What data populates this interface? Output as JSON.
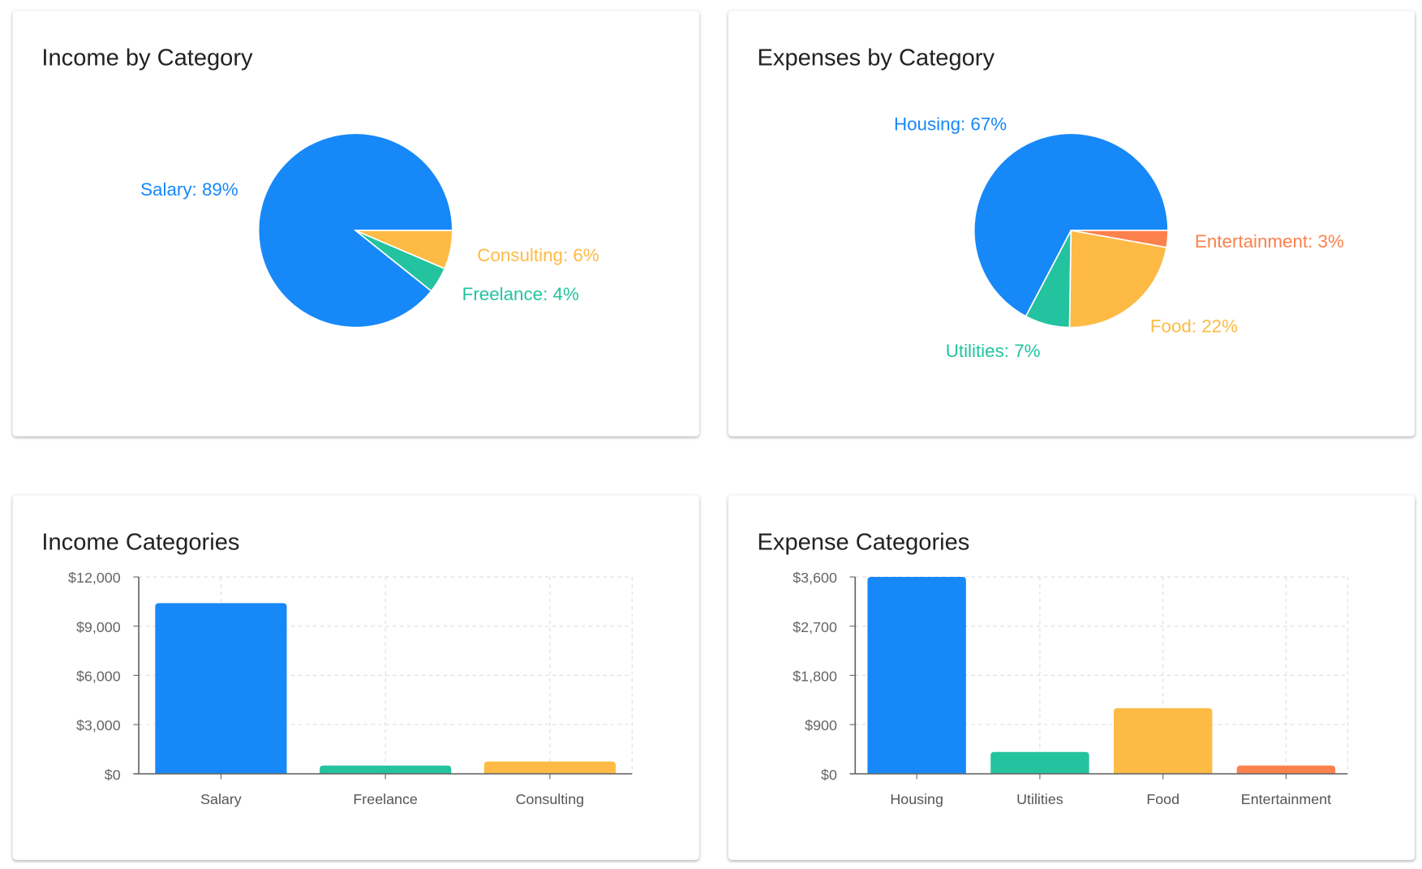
{
  "colors": {
    "blue": "#1788F8",
    "green": "#24C39F",
    "yellow": "#FDBB45",
    "orange": "#FC814D"
  },
  "chart_data": [
    {
      "type": "pie",
      "title": "Income by Category",
      "slices": [
        {
          "name": "Salary",
          "value": 10400,
          "label": "Salary: 89%",
          "color": "#1788F8"
        },
        {
          "name": "Freelance",
          "value": 500,
          "label": "Freelance: 4%",
          "color": "#24C39F"
        },
        {
          "name": "Consulting",
          "value": 750,
          "label": "Consulting: 6%",
          "color": "#FDBB45"
        }
      ]
    },
    {
      "type": "pie",
      "title": "Expenses by Category",
      "slices": [
        {
          "name": "Housing",
          "value": 3600,
          "label": "Housing: 67%",
          "color": "#1788F8"
        },
        {
          "name": "Utilities",
          "value": 400,
          "label": "Utilities: 7%",
          "color": "#24C39F"
        },
        {
          "name": "Food",
          "value": 1200,
          "label": "Food: 22%",
          "color": "#FDBB45"
        },
        {
          "name": "Entertainment",
          "value": 150,
          "label": "Entertainment: 3%",
          "color": "#FC814D"
        }
      ]
    },
    {
      "type": "bar",
      "title": "Income Categories",
      "categories": [
        "Salary",
        "Freelance",
        "Consulting"
      ],
      "values": [
        10400,
        500,
        750
      ],
      "colors": [
        "#1788F8",
        "#24C39F",
        "#FDBB45"
      ],
      "ylim": [
        0,
        12000
      ],
      "yticks": [
        "$0",
        "$3,000",
        "$6,000",
        "$9,000",
        "$12,000"
      ],
      "grid": true
    },
    {
      "type": "bar",
      "title": "Expense Categories",
      "categories": [
        "Housing",
        "Utilities",
        "Food",
        "Entertainment"
      ],
      "values": [
        3600,
        400,
        1200,
        150
      ],
      "colors": [
        "#1788F8",
        "#24C39F",
        "#FDBB45",
        "#FC814D"
      ],
      "ylim": [
        0,
        3600
      ],
      "yticks": [
        "$0",
        "$900",
        "$1,800",
        "$2,700",
        "$3,600"
      ],
      "grid": true
    }
  ]
}
